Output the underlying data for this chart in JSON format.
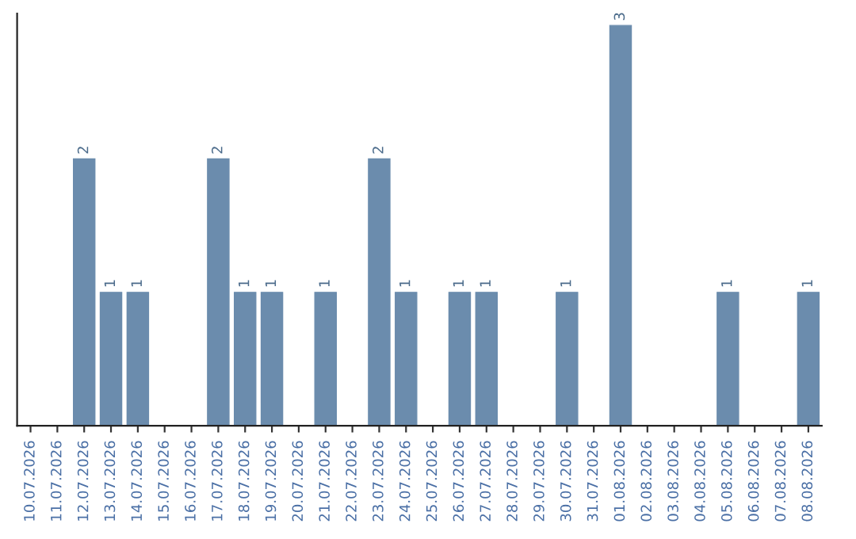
{
  "chart_data": {
    "type": "bar",
    "categories": [
      "10.07.2026",
      "11.07.2026",
      "12.07.2026",
      "13.07.2026",
      "14.07.2026",
      "15.07.2026",
      "16.07.2026",
      "17.07.2026",
      "18.07.2026",
      "19.07.2026",
      "20.07.2026",
      "21.07.2026",
      "22.07.2026",
      "23.07.2026",
      "24.07.2026",
      "25.07.2026",
      "26.07.2026",
      "27.07.2026",
      "28.07.2026",
      "29.07.2026",
      "30.07.2026",
      "31.07.2026",
      "01.08.2026",
      "02.08.2026",
      "03.08.2026",
      "04.08.2026",
      "05.08.2026",
      "06.08.2026",
      "07.08.2026",
      "08.08.2026"
    ],
    "values": [
      0,
      0,
      2,
      1,
      1,
      0,
      0,
      2,
      1,
      1,
      0,
      1,
      0,
      2,
      1,
      0,
      1,
      1,
      0,
      0,
      1,
      0,
      3,
      0,
      0,
      0,
      1,
      0,
      0,
      1
    ],
    "value_labels": [
      null,
      null,
      "2",
      "1",
      "1",
      null,
      null,
      "2",
      "1",
      "1",
      null,
      "1",
      null,
      "2",
      "1",
      null,
      "1",
      "1",
      null,
      null,
      "1",
      null,
      "3",
      null,
      null,
      null,
      "1",
      null,
      null,
      "1"
    ],
    "color": "#6b8cad",
    "tick_labels": "x",
    "grid": false,
    "legend": false
  }
}
